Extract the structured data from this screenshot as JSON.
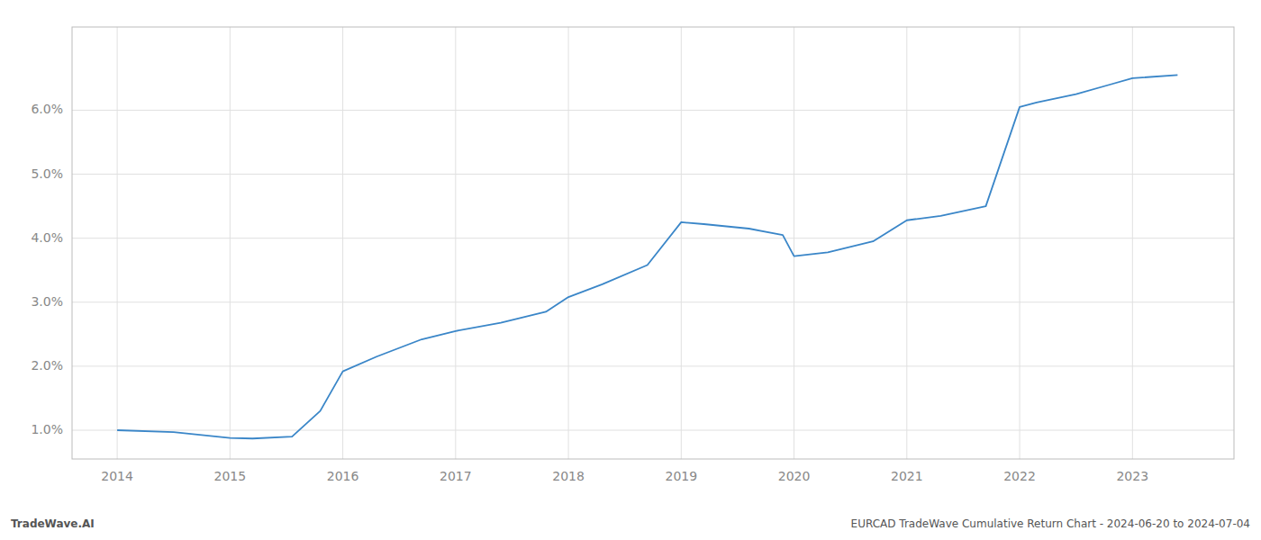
{
  "chart_data": {
    "type": "line",
    "x": [
      2014.0,
      2014.5,
      2015.0,
      2015.2,
      2015.55,
      2015.8,
      2016.0,
      2016.3,
      2016.7,
      2017.0,
      2017.4,
      2017.8,
      2018.0,
      2018.3,
      2018.7,
      2019.0,
      2019.2,
      2019.6,
      2019.9,
      2020.0,
      2020.3,
      2020.7,
      2021.0,
      2021.3,
      2021.7,
      2022.0,
      2022.15,
      2022.5,
      2022.8,
      2023.0,
      2023.4
    ],
    "values": [
      1.0,
      0.97,
      0.88,
      0.87,
      0.9,
      1.3,
      1.92,
      2.15,
      2.42,
      2.55,
      2.68,
      2.85,
      3.08,
      3.28,
      3.58,
      4.25,
      4.22,
      4.15,
      4.05,
      3.72,
      3.78,
      3.95,
      4.28,
      4.35,
      4.5,
      6.05,
      6.12,
      6.25,
      6.4,
      6.5,
      6.55
    ],
    "color": "#3a86c8",
    "xlim": [
      2013.6,
      2023.9
    ],
    "ylim": [
      0.55,
      7.3
    ],
    "xticks": [
      2014,
      2015,
      2016,
      2017,
      2018,
      2019,
      2020,
      2021,
      2022,
      2023
    ],
    "yticks": [
      {
        "value": 1.0,
        "label": "1.0%"
      },
      {
        "value": 2.0,
        "label": "2.0%"
      },
      {
        "value": 3.0,
        "label": "3.0%"
      },
      {
        "value": 4.0,
        "label": "4.0%"
      },
      {
        "value": 5.0,
        "label": "5.0%"
      },
      {
        "value": 6.0,
        "label": "6.0%"
      }
    ],
    "grid": true,
    "annotations": [
      "TradeWave.AI",
      "EURCAD TradeWave Cumulative Return Chart - 2024-06-20 to 2024-07-04"
    ]
  }
}
